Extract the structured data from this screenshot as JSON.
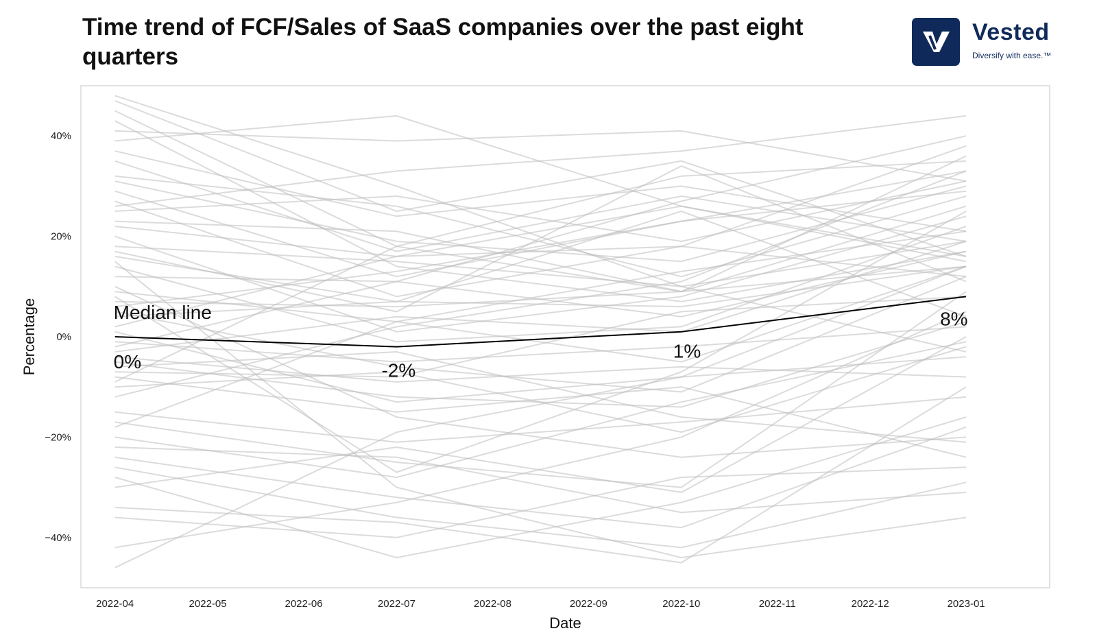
{
  "header": {
    "title": "Time trend of FCF/Sales of SaaS companies over the past eight quarters"
  },
  "logo": {
    "name": "Vested",
    "tagline": "Diversify with ease.™",
    "brand_color": "#0f2a5a"
  },
  "chart_data": {
    "type": "line",
    "title": "Time trend of FCF/Sales of SaaS companies over the past eight quarters",
    "xlabel": "Date",
    "ylabel": "Percentage",
    "x_ticks": [
      "2022-04",
      "2022-05",
      "2022-06",
      "2022-07",
      "2022-08",
      "2022-09",
      "2022-10",
      "2022-11",
      "2022-12",
      "2023-01"
    ],
    "y_ticks": [
      {
        "value": 40,
        "label": "40%"
      },
      {
        "value": 20,
        "label": "20%"
      },
      {
        "value": 0,
        "label": "0%"
      },
      {
        "value": -20,
        "label": "−20%"
      },
      {
        "value": -40,
        "label": "−40%"
      }
    ],
    "x_range": [
      "2022-03-21",
      "2023-01-28"
    ],
    "ylim": [
      -50,
      50
    ],
    "grid": false,
    "quarter_dates": [
      "2022-04-01",
      "2022-07-01",
      "2022-10-01",
      "2023-01-01"
    ],
    "median": {
      "name": "Median line",
      "values": [
        0,
        -2,
        1,
        8
      ],
      "labels": [
        "0%",
        "-2%",
        "1%",
        "8%"
      ],
      "color": "#000000"
    },
    "companies_color": "#bdbdbd",
    "companies": [
      [
        47,
        25,
        35,
        16
      ],
      [
        45,
        18,
        9,
        14
      ],
      [
        43,
        14,
        7,
        17
      ],
      [
        41,
        39,
        41,
        31
      ],
      [
        39,
        44,
        26,
        16
      ],
      [
        37,
        24,
        30,
        21
      ],
      [
        35,
        17,
        28,
        19
      ],
      [
        32,
        26,
        12,
        28
      ],
      [
        31,
        19,
        15,
        30
      ],
      [
        29,
        12,
        23,
        33
      ],
      [
        27,
        8,
        18,
        38
      ],
      [
        25,
        28,
        19,
        31
      ],
      [
        23,
        21,
        9,
        26
      ],
      [
        22,
        16,
        18,
        12
      ],
      [
        20,
        1,
        8,
        24
      ],
      [
        18,
        15,
        10,
        19
      ],
      [
        17,
        5,
        34,
        11
      ],
      [
        16,
        7,
        6,
        14
      ],
      [
        14,
        -1,
        2,
        22
      ],
      [
        12,
        11,
        4,
        17
      ],
      [
        9,
        3,
        -5,
        14
      ],
      [
        7,
        6,
        9,
        36
      ],
      [
        6,
        13,
        23,
        29
      ],
      [
        5,
        -6,
        -11,
        12
      ],
      [
        4,
        7,
        25,
        4
      ],
      [
        2,
        16,
        26,
        15
      ],
      [
        1,
        -13,
        -8,
        -4
      ],
      [
        -1,
        -5,
        -2,
        2
      ],
      [
        -3,
        4,
        1,
        19
      ],
      [
        -4,
        -9,
        -6,
        -8
      ],
      [
        -5,
        -12,
        -14,
        3
      ],
      [
        -6,
        -3,
        -16,
        -21
      ],
      [
        -7,
        -8,
        5,
        8
      ],
      [
        -8,
        -15,
        -10,
        -24
      ],
      [
        -10,
        -7,
        -19,
        -2
      ],
      [
        -12,
        2,
        11,
        33
      ],
      [
        -15,
        -21,
        -17,
        -12
      ],
      [
        -17,
        -25,
        -30,
        9
      ],
      [
        -20,
        -28,
        -13,
        -1
      ],
      [
        -22,
        -24,
        -35,
        -31
      ],
      [
        -24,
        -32,
        -38,
        -18
      ],
      [
        -26,
        -36,
        -42,
        -29
      ],
      [
        -28,
        -44,
        -33,
        -16
      ],
      [
        -30,
        -22,
        -31,
        0
      ],
      [
        -34,
        -37,
        -45,
        -10
      ],
      [
        -36,
        -40,
        -28,
        -26
      ],
      [
        -42,
        -33,
        -20,
        5
      ],
      [
        -46,
        -19,
        -8,
        14
      ],
      [
        10,
        -16,
        -24,
        -20
      ],
      [
        -18,
        3,
        13,
        21
      ],
      [
        48,
        30,
        10,
        -3
      ],
      [
        15,
        -30,
        -44,
        -36
      ],
      [
        -2,
        11,
        27,
        40
      ],
      [
        26,
        33,
        37,
        44
      ],
      [
        8,
        -27,
        -7,
        25
      ],
      [
        -9,
        18,
        32,
        35
      ]
    ]
  }
}
